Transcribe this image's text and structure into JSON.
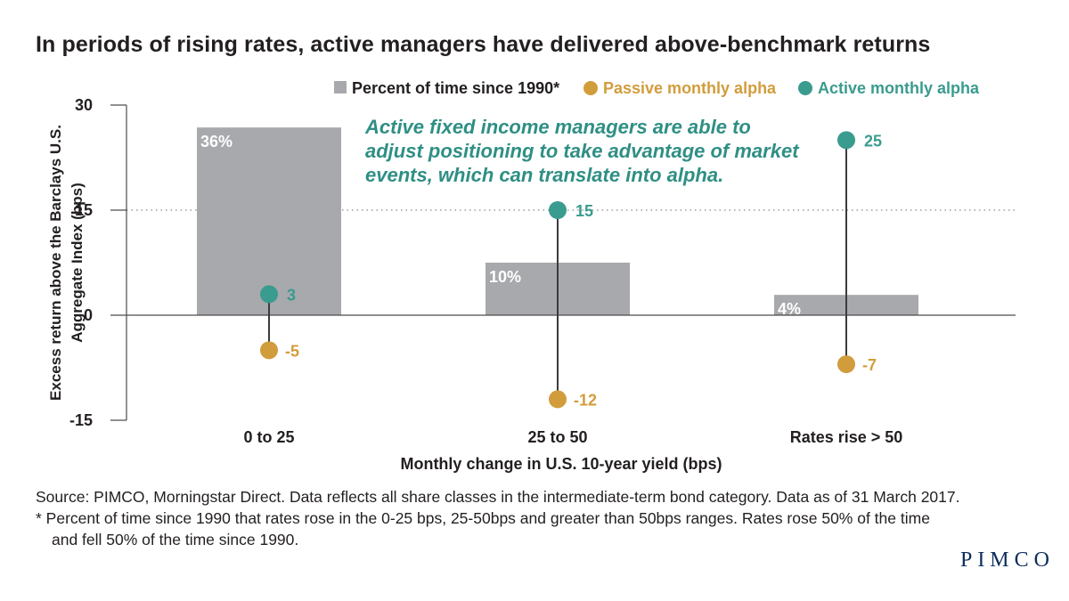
{
  "title": "In periods of rising rates, active managers have delivered above-benchmark returns",
  "colors": {
    "bar": "#a7a9ac",
    "passive": "#d19d3c",
    "active": "#3a9b8f",
    "stem": "#3b3b3b",
    "axis": "#4d4d4d",
    "annotation": "#2f8f84",
    "logo": "#0b2d5b"
  },
  "chart_data": {
    "type": "bar",
    "categories": [
      "0 to 25",
      "25 to 50",
      "Rates rise > 50"
    ],
    "series": [
      {
        "name": "Percent of time since 1990*",
        "kind": "bar",
        "values": [
          36,
          10,
          4
        ],
        "value_labels": [
          "36%",
          "10%",
          "4%"
        ],
        "bar_heights_in_bps_axis": [
          26.8,
          7.5,
          2.9
        ]
      },
      {
        "name": "Passive monthly alpha",
        "kind": "dot",
        "values": [
          -5,
          -12,
          -7
        ],
        "value_labels": [
          "-5",
          "-12",
          "-7"
        ]
      },
      {
        "name": "Active monthly alpha",
        "kind": "dot",
        "values": [
          3,
          15,
          25
        ],
        "value_labels": [
          "3",
          "15",
          "25"
        ]
      }
    ],
    "ylabel_lines": [
      "Excess return above the Barclays U.S.",
      "Aggregate Index (bps)"
    ],
    "xlabel": "Monthly change in U.S. 10-year yield (bps)",
    "ylim": [
      -15,
      30
    ],
    "yticks": [
      30,
      15,
      0,
      -15
    ],
    "ytick_labels": [
      "30",
      "15",
      "0",
      "-15"
    ],
    "grid": "dotted line at 15",
    "legend_placement": "top-right",
    "annotation_lines": [
      "Active fixed income managers are able to",
      "adjust positioning to take advantage of market",
      "events, which can translate into alpha."
    ]
  },
  "footnotes": {
    "source": "Source: PIMCO, Morningstar Direct. Data reflects all share classes in the intermediate-term bond category. Data as of 31 March 2017.",
    "note_line1": "* Percent of time since 1990 that rates rose in the 0-25 bps, 25-50bps and greater than 50bps ranges. Rates rose 50% of the time",
    "note_line2": "and fell 50% of the time since 1990."
  },
  "logo": "PIMCO"
}
